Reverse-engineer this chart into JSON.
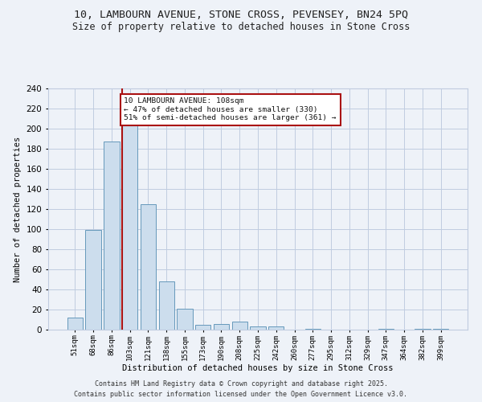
{
  "title_line1": "10, LAMBOURN AVENUE, STONE CROSS, PEVENSEY, BN24 5PQ",
  "title_line2": "Size of property relative to detached houses in Stone Cross",
  "xlabel": "Distribution of detached houses by size in Stone Cross",
  "ylabel": "Number of detached properties",
  "categories": [
    "51sqm",
    "68sqm",
    "86sqm",
    "103sqm",
    "121sqm",
    "138sqm",
    "155sqm",
    "173sqm",
    "190sqm",
    "208sqm",
    "225sqm",
    "242sqm",
    "260sqm",
    "277sqm",
    "295sqm",
    "312sqm",
    "329sqm",
    "347sqm",
    "364sqm",
    "382sqm",
    "399sqm"
  ],
  "values": [
    12,
    99,
    187,
    204,
    125,
    48,
    21,
    5,
    6,
    8,
    3,
    3,
    0,
    1,
    0,
    0,
    0,
    1,
    0,
    1,
    1
  ],
  "bar_color": "#ccdded",
  "bar_edge_color": "#6699bb",
  "grid_color": "#c0cce0",
  "background_color": "#eef2f8",
  "vline_color": "#aa1111",
  "annotation_text": "10 LAMBOURN AVENUE: 108sqm\n← 47% of detached houses are smaller (330)\n51% of semi-detached houses are larger (361) →",
  "annotation_box_color": "#ffffff",
  "annotation_border_color": "#aa1111",
  "footer_line1": "Contains HM Land Registry data © Crown copyright and database right 2025.",
  "footer_line2": "Contains public sector information licensed under the Open Government Licence v3.0.",
  "ylim": [
    0,
    240
  ],
  "yticks": [
    0,
    20,
    40,
    60,
    80,
    100,
    120,
    140,
    160,
    180,
    200,
    220,
    240
  ]
}
